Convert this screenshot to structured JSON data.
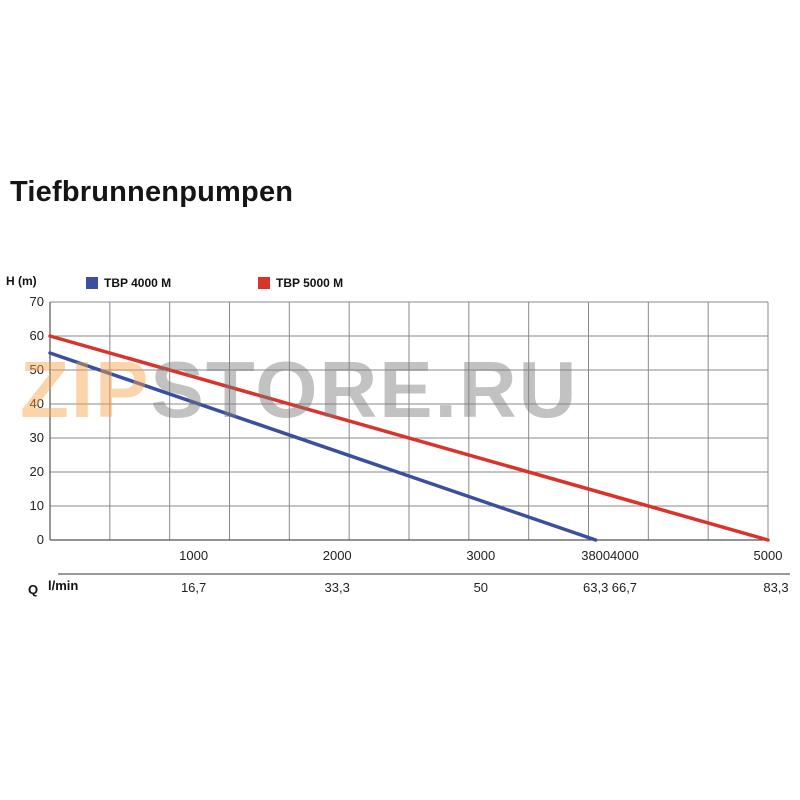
{
  "header": {
    "title": "Tiefbrunnenpumpen"
  },
  "watermark": {
    "part1": "ZIP",
    "part2": "STORE.RU"
  },
  "chart_data": {
    "type": "line",
    "ylabel": "H (m)",
    "xlabel_q": "Q",
    "xlabel_unit": "l/min",
    "ylim": [
      0,
      70
    ],
    "xlim": [
      0,
      5000
    ],
    "yticks": [
      0,
      10,
      20,
      30,
      40,
      50,
      60,
      70
    ],
    "xticks": [
      1000,
      2000,
      3000,
      3800,
      4000,
      5000
    ],
    "xtick_labels": [
      "1000",
      "2000",
      "3000",
      "3800",
      "4000",
      "5000"
    ],
    "secondary_xtick_labels": [
      "16,7",
      "33,3",
      "50",
      "63,3",
      "66,7",
      "83,3"
    ],
    "grid": true,
    "legend_position": "top",
    "series": [
      {
        "name": "TBP 4000 M",
        "color": "#3a4fa0",
        "x": [
          0,
          3800
        ],
        "y": [
          55,
          0
        ]
      },
      {
        "name": "TBP 5000 M",
        "color": "#d9342b",
        "x": [
          0,
          5000
        ],
        "y": [
          60,
          0
        ]
      }
    ]
  }
}
